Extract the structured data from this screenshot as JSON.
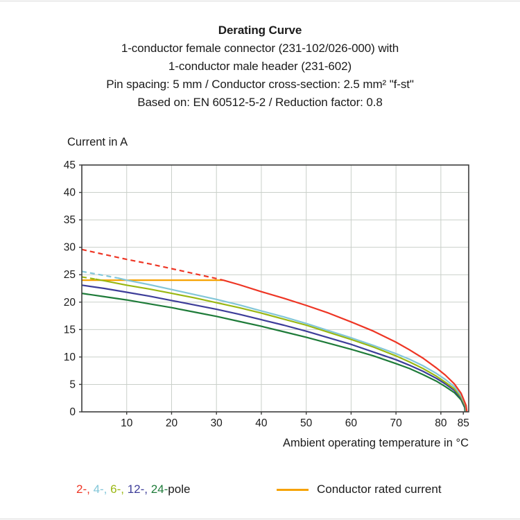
{
  "title": {
    "main": "Derating Curve",
    "line1": "1-conductor female connector (231-102/026-000) with",
    "line2": "1-conductor male header (231-602)",
    "line3": "Pin spacing: 5 mm / Conductor cross-section: 2.5 mm² \"f-st\"",
    "line4": "Based on: EN 60512-5-2 / Reduction factor: 0.8"
  },
  "chart_data": {
    "type": "line",
    "title": "Derating Curve",
    "xlabel": "Ambient operating temperature in °C",
    "ylabel": "Current in A",
    "xlim": [
      0,
      86.2
    ],
    "ylim": [
      0,
      45
    ],
    "x_ticks": [
      10,
      20,
      30,
      40,
      50,
      60,
      70,
      80,
      85
    ],
    "y_ticks": [
      0,
      5,
      10,
      15,
      20,
      25,
      30,
      35,
      40,
      45
    ],
    "x_gridlines": [
      10,
      20,
      30,
      40,
      50,
      60,
      70,
      80
    ],
    "y_gridlines": [
      5,
      10,
      15,
      20,
      25,
      30,
      35,
      40
    ],
    "grid": true,
    "grid_color": "#c9cfc9",
    "axis_color": "#3c3c3c",
    "tick_label_color": "#1a1a1a",
    "series": [
      {
        "name": "Conductor rated current",
        "color": "#f6a200",
        "width": 2.2,
        "segments": [
          {
            "dash": false,
            "points": [
              [
                0,
                24
              ],
              [
                31.5,
                24
              ]
            ]
          }
        ]
      },
      {
        "name": "24-pole",
        "color": "#1e7b39",
        "width": 2.2,
        "segments": [
          {
            "dash": false,
            "points": [
              [
                0,
                21.6
              ],
              [
                5,
                21.0
              ],
              [
                10,
                20.4
              ],
              [
                15,
                19.7
              ],
              [
                20,
                19.0
              ],
              [
                25,
                18.2
              ],
              [
                30,
                17.4
              ],
              [
                35,
                16.5
              ],
              [
                40,
                15.6
              ],
              [
                45,
                14.6
              ],
              [
                50,
                13.6
              ],
              [
                55,
                12.5
              ],
              [
                60,
                11.4
              ],
              [
                65,
                10.2
              ],
              [
                70,
                8.8
              ],
              [
                73,
                7.9
              ],
              [
                76,
                6.8
              ],
              [
                79,
                5.6
              ],
              [
                81,
                4.6
              ],
              [
                83,
                3.5
              ],
              [
                84.5,
                2.2
              ],
              [
                85.3,
                0.8
              ],
              [
                85.4,
                0
              ]
            ]
          }
        ]
      },
      {
        "name": "12-pole",
        "color": "#3d3d99",
        "width": 2.2,
        "segments": [
          {
            "dash": false,
            "points": [
              [
                0,
                23.1
              ],
              [
                5,
                22.5
              ],
              [
                10,
                21.8
              ],
              [
                15,
                21.1
              ],
              [
                20,
                20.3
              ],
              [
                25,
                19.5
              ],
              [
                30,
                18.7
              ],
              [
                35,
                17.8
              ],
              [
                40,
                16.8
              ],
              [
                45,
                15.8
              ],
              [
                50,
                14.7
              ],
              [
                55,
                13.5
              ],
              [
                60,
                12.3
              ],
              [
                65,
                10.9
              ],
              [
                70,
                9.5
              ],
              [
                73,
                8.5
              ],
              [
                76,
                7.4
              ],
              [
                79,
                6.1
              ],
              [
                81,
                5.1
              ],
              [
                83,
                3.9
              ],
              [
                84.5,
                2.5
              ],
              [
                85.4,
                0.9
              ],
              [
                85.5,
                0
              ]
            ]
          }
        ]
      },
      {
        "name": "6-pole",
        "color": "#9ab712",
        "width": 2.2,
        "segments": [
          {
            "dash": true,
            "points": [
              [
                0,
                24.6
              ],
              [
                3,
                24.2
              ]
            ]
          },
          {
            "dash": false,
            "points": [
              [
                3,
                24.2
              ],
              [
                5,
                23.9
              ],
              [
                10,
                23.1
              ],
              [
                15,
                22.4
              ],
              [
                20,
                21.6
              ],
              [
                25,
                20.8
              ],
              [
                30,
                19.9
              ],
              [
                35,
                19.0
              ],
              [
                40,
                18.0
              ],
              [
                45,
                16.9
              ],
              [
                50,
                15.8
              ],
              [
                55,
                14.5
              ],
              [
                60,
                13.2
              ],
              [
                65,
                11.8
              ],
              [
                70,
                10.2
              ],
              [
                73,
                9.1
              ],
              [
                76,
                7.9
              ],
              [
                79,
                6.5
              ],
              [
                81,
                5.4
              ],
              [
                83,
                4.2
              ],
              [
                84.5,
                2.7
              ],
              [
                85.5,
                1.0
              ],
              [
                85.6,
                0
              ]
            ]
          }
        ]
      },
      {
        "name": "4-pole",
        "color": "#82c6d8",
        "width": 2.2,
        "segments": [
          {
            "dash": true,
            "points": [
              [
                0,
                25.6
              ],
              [
                4,
                25.0
              ],
              [
                8,
                24.4
              ]
            ]
          },
          {
            "dash": false,
            "points": [
              [
                8,
                24.4
              ],
              [
                10,
                24.0
              ],
              [
                15,
                23.2
              ],
              [
                20,
                22.3
              ],
              [
                25,
                21.4
              ],
              [
                30,
                20.5
              ],
              [
                35,
                19.5
              ],
              [
                40,
                18.4
              ],
              [
                45,
                17.3
              ],
              [
                50,
                16.1
              ],
              [
                55,
                14.8
              ],
              [
                60,
                13.5
              ],
              [
                65,
                12.1
              ],
              [
                70,
                10.6
              ],
              [
                73,
                9.6
              ],
              [
                76,
                8.4
              ],
              [
                79,
                7.0
              ],
              [
                81,
                5.9
              ],
              [
                83,
                4.6
              ],
              [
                84.5,
                3.0
              ],
              [
                85.6,
                1.1
              ],
              [
                85.7,
                0
              ]
            ]
          }
        ]
      },
      {
        "name": "2-pole",
        "color": "#ee3524",
        "width": 2.2,
        "segments": [
          {
            "dash": true,
            "points": [
              [
                0,
                29.6
              ],
              [
                5,
                28.7
              ],
              [
                10,
                27.8
              ],
              [
                15,
                27.0
              ],
              [
                20,
                26.1
              ],
              [
                25,
                25.2
              ],
              [
                30,
                24.3
              ],
              [
                31.5,
                24.0
              ]
            ]
          },
          {
            "dash": false,
            "points": [
              [
                31.5,
                24.0
              ],
              [
                35,
                23.2
              ],
              [
                40,
                21.9
              ],
              [
                45,
                20.7
              ],
              [
                50,
                19.4
              ],
              [
                55,
                18.0
              ],
              [
                60,
                16.4
              ],
              [
                65,
                14.7
              ],
              [
                70,
                12.7
              ],
              [
                73,
                11.3
              ],
              [
                76,
                9.8
              ],
              [
                79,
                8.0
              ],
              [
                81,
                6.7
              ],
              [
                83,
                5.1
              ],
              [
                84.5,
                3.4
              ],
              [
                85.6,
                1.2
              ],
              [
                85.8,
                0
              ]
            ]
          }
        ]
      }
    ]
  },
  "legend": {
    "poles": [
      {
        "label": "2-, ",
        "color": "#ee3524"
      },
      {
        "label": "4-, ",
        "color": "#82c6d8"
      },
      {
        "label": "6-, ",
        "color": "#9ab712"
      },
      {
        "label": "12-, ",
        "color": "#3d3d99"
      },
      {
        "label": "24-",
        "color": "#1e7b39"
      }
    ],
    "poles_suffix": "pole",
    "rated_label": "Conductor rated current",
    "rated_color": "#f6a200"
  }
}
